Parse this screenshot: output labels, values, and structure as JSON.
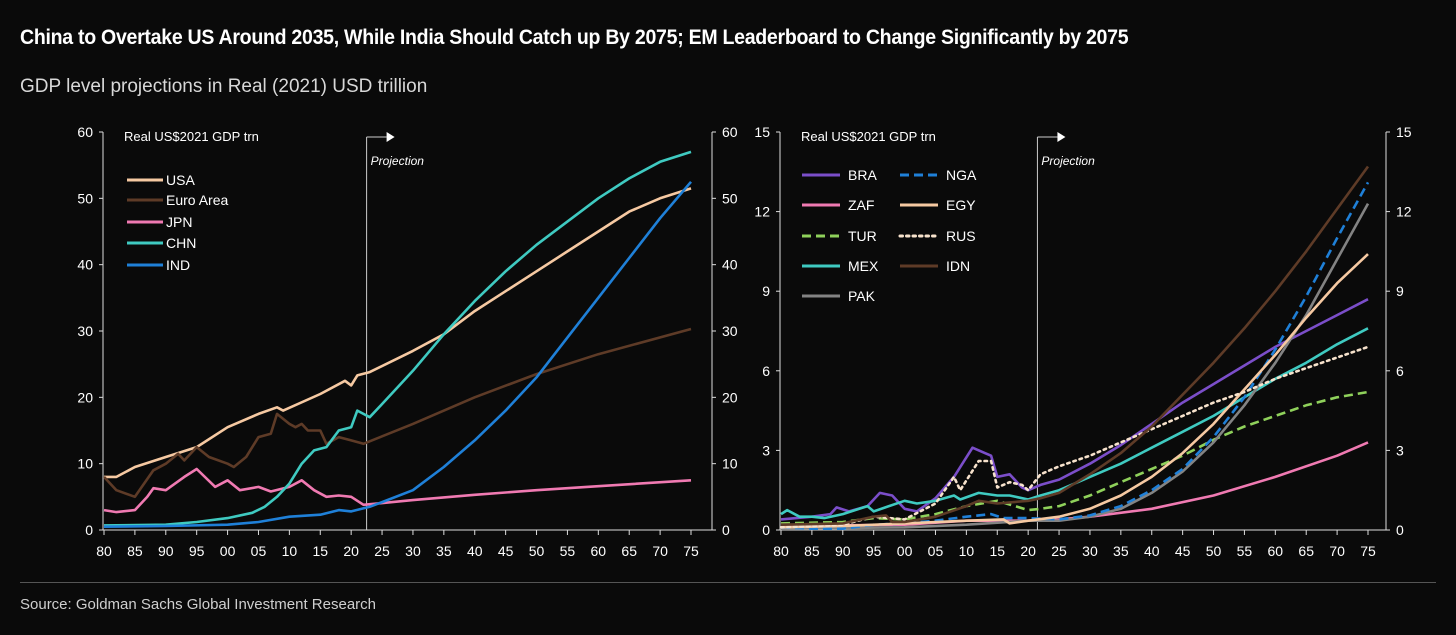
{
  "title": "China to Overtake US Around 2035, While India Should Catch up By 2075; EM Leaderboard to Change Significantly by 2075",
  "subtitle": "GDP level projections in Real (2021) USD trillion",
  "source": "Source: Goldman Sachs Global Investment Research",
  "chart_data": [
    {
      "type": "line",
      "ylabel": "Real US$2021 GDP trn",
      "annotation": "Projection",
      "projection_start_year": 2022.5,
      "xlim": [
        1980,
        2075
      ],
      "ylim": [
        0,
        60
      ],
      "yticks": [
        0,
        10,
        20,
        30,
        40,
        50,
        60
      ],
      "xtick_labels": [
        "80",
        "85",
        "90",
        "95",
        "00",
        "05",
        "10",
        "15",
        "20",
        "25",
        "30",
        "35",
        "40",
        "45",
        "50",
        "55",
        "60",
        "65",
        "70",
        "75"
      ],
      "legend_placement": "top-left",
      "series": [
        {
          "name": "USA",
          "color": "#f6c9a2",
          "style": "solid",
          "x": [
            1980,
            1982,
            1985,
            1990,
            1995,
            2000,
            2005,
            2008,
            2009,
            2015,
            2019,
            2020,
            2021,
            2023,
            2030,
            2035,
            2040,
            2045,
            2050,
            2055,
            2060,
            2065,
            2070,
            2075
          ],
          "y": [
            8,
            8,
            9.5,
            11,
            12.5,
            15.5,
            17.5,
            18.5,
            18,
            20.5,
            22.5,
            21.8,
            23.3,
            23.8,
            27,
            29.5,
            33,
            36,
            39,
            42,
            45,
            48,
            50,
            51.5
          ]
        },
        {
          "name": "Euro Area",
          "color": "#5e3b27",
          "style": "solid",
          "x": [
            1980,
            1982,
            1985,
            1988,
            1990,
            1992,
            1993,
            1995,
            1997,
            2000,
            2001,
            2003,
            2005,
            2007,
            2008,
            2010,
            2011,
            2012,
            2013,
            2015,
            2016,
            2018,
            2020,
            2022,
            2030,
            2040,
            2050,
            2060,
            2075
          ],
          "y": [
            8,
            6,
            5,
            9,
            10,
            11.5,
            10.5,
            12.5,
            11,
            10,
            9.5,
            11,
            14,
            14.5,
            17.5,
            16,
            15.5,
            16,
            15,
            15,
            13,
            14,
            13.5,
            13,
            16,
            20,
            23.5,
            26.5,
            30.3
          ]
        },
        {
          "name": "JPN",
          "color": "#f07ab2",
          "style": "solid",
          "x": [
            1980,
            1982,
            1985,
            1987,
            1988,
            1990,
            1993,
            1995,
            1998,
            2000,
            2002,
            2005,
            2007,
            2010,
            2012,
            2014,
            2016,
            2018,
            2020,
            2022,
            2030,
            2040,
            2050,
            2060,
            2075
          ],
          "y": [
            3,
            2.7,
            3,
            5,
            6.3,
            6,
            8,
            9.2,
            6.5,
            7.5,
            6,
            6.5,
            5.8,
            6.5,
            7.5,
            6,
            5,
            5.2,
            5,
            3.8,
            4.5,
            5.3,
            6,
            6.6,
            7.5
          ]
        },
        {
          "name": "CHN",
          "color": "#3fcac1",
          "style": "solid",
          "x": [
            1980,
            1990,
            1995,
            2000,
            2004,
            2006,
            2008,
            2010,
            2012,
            2014,
            2016,
            2018,
            2020,
            2021,
            2022,
            2023,
            2025,
            2030,
            2035,
            2040,
            2045,
            2050,
            2055,
            2060,
            2065,
            2070,
            2075
          ],
          "y": [
            0.7,
            0.8,
            1.2,
            1.8,
            2.6,
            3.5,
            5,
            7,
            10,
            12,
            12.5,
            15,
            15.5,
            18,
            17.5,
            17,
            19,
            24,
            29.5,
            34.5,
            39,
            43,
            46.5,
            50,
            53,
            55.5,
            57
          ]
        },
        {
          "name": "IND",
          "color": "#1f80d8",
          "style": "solid",
          "x": [
            1980,
            1990,
            2000,
            2005,
            2010,
            2015,
            2018,
            2020,
            2023,
            2025,
            2030,
            2035,
            2040,
            2045,
            2050,
            2055,
            2060,
            2065,
            2070,
            2075
          ],
          "y": [
            0.5,
            0.6,
            0.8,
            1.2,
            2,
            2.3,
            3,
            2.8,
            3.5,
            4.2,
            6,
            9.5,
            13.5,
            18,
            23,
            29,
            35,
            41,
            47,
            52.5
          ]
        }
      ]
    },
    {
      "type": "line",
      "ylabel": "Real US$2021 GDP trn",
      "annotation": "Projection",
      "projection_start_year": 2021.5,
      "xlim": [
        1980,
        2075
      ],
      "ylim": [
        0,
        15
      ],
      "yticks": [
        0,
        3,
        6,
        9,
        12,
        15
      ],
      "xtick_labels": [
        "80",
        "85",
        "90",
        "95",
        "00",
        "05",
        "10",
        "15",
        "20",
        "25",
        "30",
        "35",
        "40",
        "45",
        "50",
        "55",
        "60",
        "65",
        "70",
        "75"
      ],
      "legend_placement": "top-left",
      "series": [
        {
          "name": "BRA",
          "color": "#7b4ec9",
          "style": "solid",
          "x": [
            1980,
            1985,
            1988,
            1989,
            1991,
            1994,
            1996,
            1998,
            2000,
            2002,
            2005,
            2008,
            2011,
            2013,
            2014,
            2015,
            2017,
            2019,
            2020,
            2022,
            2025,
            2030,
            2035,
            2040,
            2045,
            2050,
            2055,
            2060,
            2065,
            2070,
            2075
          ],
          "y": [
            0.4,
            0.5,
            0.6,
            0.85,
            0.7,
            0.9,
            1.4,
            1.3,
            0.8,
            0.7,
            1.2,
            2,
            3.1,
            2.9,
            2.8,
            2,
            2.1,
            1.6,
            1.5,
            1.7,
            1.9,
            2.5,
            3.2,
            4,
            4.8,
            5.5,
            6.2,
            6.9,
            7.5,
            8.1,
            8.7
          ]
        },
        {
          "name": "ZAF",
          "color": "#f07ab2",
          "style": "solid",
          "x": [
            1980,
            2000,
            2010,
            2020,
            2025,
            2030,
            2040,
            2050,
            2060,
            2070,
            2075
          ],
          "y": [
            0.15,
            0.2,
            0.35,
            0.35,
            0.4,
            0.5,
            0.8,
            1.3,
            2,
            2.8,
            3.3
          ]
        },
        {
          "name": "TUR",
          "color": "#8fd15b",
          "style": "dashed",
          "x": [
            1980,
            1990,
            1995,
            2000,
            2005,
            2010,
            2015,
            2020,
            2022,
            2025,
            2030,
            2035,
            2040,
            2045,
            2050,
            2055,
            2060,
            2065,
            2070,
            2075
          ],
          "y": [
            0.25,
            0.3,
            0.45,
            0.4,
            0.6,
            0.9,
            1.1,
            0.75,
            0.8,
            0.9,
            1.3,
            1.8,
            2.3,
            2.8,
            3.4,
            3.9,
            4.3,
            4.7,
            5,
            5.2
          ]
        },
        {
          "name": "MEX",
          "color": "#3fcac1",
          "style": "solid",
          "x": [
            1980,
            1981,
            1983,
            1985,
            1987,
            1990,
            1994,
            1995,
            2000,
            2002,
            2005,
            2008,
            2009,
            2012,
            2015,
            2017,
            2020,
            2022,
            2025,
            2030,
            2035,
            2040,
            2045,
            2050,
            2055,
            2060,
            2065,
            2070,
            2075
          ],
          "y": [
            0.6,
            0.75,
            0.5,
            0.5,
            0.45,
            0.6,
            0.9,
            0.7,
            1.1,
            1,
            1.1,
            1.3,
            1.15,
            1.4,
            1.3,
            1.3,
            1.15,
            1.3,
            1.5,
            2,
            2.5,
            3.1,
            3.7,
            4.3,
            5,
            5.7,
            6.3,
            7,
            7.6
          ]
        },
        {
          "name": "PAK",
          "color": "#838383",
          "style": "solid",
          "x": [
            1980,
            2000,
            2010,
            2020,
            2025,
            2030,
            2035,
            2040,
            2045,
            2050,
            2055,
            2060,
            2065,
            2070,
            2075
          ],
          "y": [
            0.05,
            0.1,
            0.2,
            0.35,
            0.35,
            0.5,
            0.8,
            1.4,
            2.2,
            3.3,
            4.7,
            6.3,
            8.1,
            10.2,
            12.3
          ]
        },
        {
          "name": "NGA",
          "color": "#1f80d8",
          "style": "dashed",
          "x": [
            1980,
            1985,
            1990,
            1995,
            2000,
            2005,
            2010,
            2014,
            2016,
            2020,
            2025,
            2030,
            2035,
            2040,
            2045,
            2050,
            2055,
            2060,
            2065,
            2070,
            2075
          ],
          "y": [
            0.1,
            0.05,
            0.05,
            0.2,
            0.25,
            0.35,
            0.5,
            0.6,
            0.45,
            0.45,
            0.4,
            0.55,
            0.9,
            1.5,
            2.3,
            3.5,
            5,
            6.8,
            8.8,
            11,
            13.1
          ]
        },
        {
          "name": "EGY",
          "color": "#f6c9a2",
          "style": "solid",
          "x": [
            1980,
            1990,
            2000,
            2010,
            2016,
            2017,
            2020,
            2025,
            2030,
            2035,
            2040,
            2045,
            2050,
            2055,
            2060,
            2065,
            2070,
            2075
          ],
          "y": [
            0.1,
            0.15,
            0.25,
            0.35,
            0.4,
            0.25,
            0.35,
            0.5,
            0.8,
            1.3,
            2,
            2.9,
            4,
            5.3,
            6.6,
            8,
            9.3,
            10.4
          ]
        },
        {
          "name": "RUS",
          "color": "#f7e2cc",
          "style": "dotted",
          "x": [
            1980,
            1990,
            1995,
            2000,
            2005,
            2008,
            2009,
            2012,
            2014,
            2015,
            2017,
            2019,
            2020,
            2022,
            2025,
            2030,
            2035,
            2040,
            2045,
            2050,
            2055,
            2060,
            2065,
            2070,
            2075
          ],
          "y": [
            0.1,
            0.2,
            0.5,
            0.4,
            1,
            2,
            1.5,
            2.6,
            2.6,
            1.6,
            1.8,
            1.7,
            1.5,
            2.1,
            2.4,
            2.8,
            3.3,
            3.8,
            4.3,
            4.8,
            5.2,
            5.7,
            6.1,
            6.5,
            6.9
          ]
        },
        {
          "name": "IDN",
          "color": "#5e3b27",
          "style": "solid",
          "x": [
            1980,
            1990,
            1995,
            1997,
            1998,
            2000,
            2005,
            2010,
            2012,
            2015,
            2020,
            2022,
            2025,
            2030,
            2035,
            2040,
            2045,
            2050,
            2055,
            2060,
            2065,
            2070,
            2075
          ],
          "y": [
            0.2,
            0.25,
            0.5,
            0.55,
            0.3,
            0.3,
            0.5,
            0.9,
            1.1,
            1,
            1.1,
            1.2,
            1.4,
            2.1,
            2.9,
            3.9,
            5.1,
            6.3,
            7.6,
            9,
            10.5,
            12.1,
            13.7
          ]
        }
      ]
    }
  ]
}
